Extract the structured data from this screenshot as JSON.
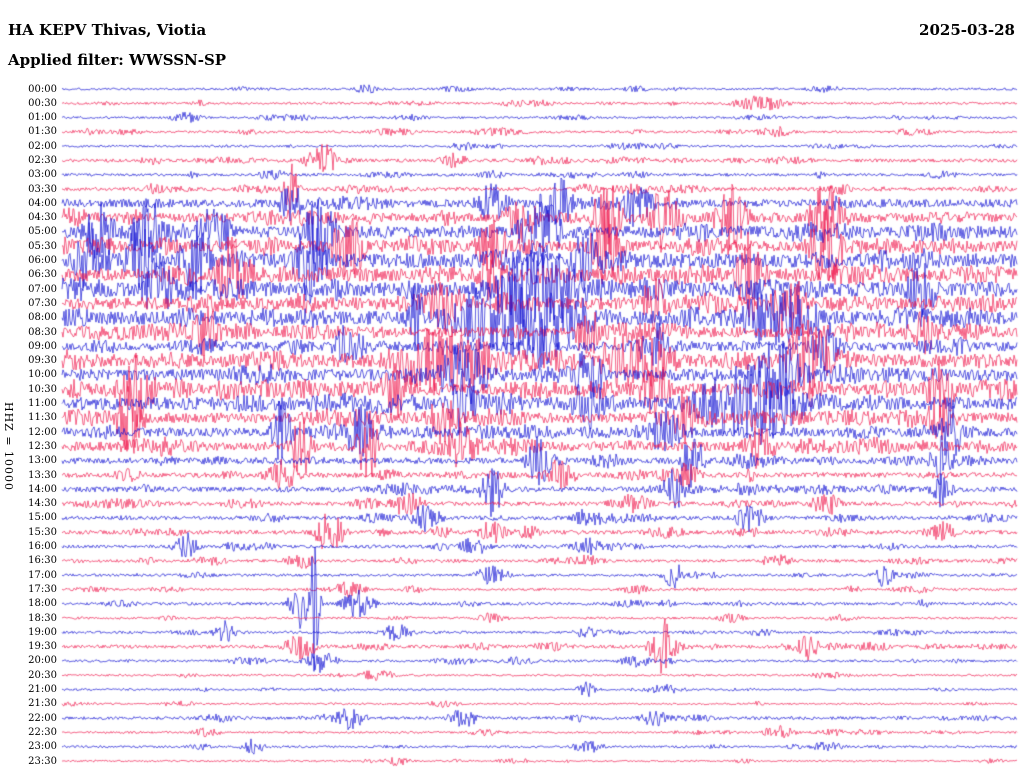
{
  "header": {
    "station_line": "HA KEPV Thivas, Viotia",
    "filter_line": "Applied filter: WWSSN-SP",
    "date": "2025-03-28"
  },
  "axis": {
    "scale_label": "HHZ = 10000",
    "start_time": "00:00",
    "end_time": "23:30",
    "time_step_minutes": 30
  },
  "chart_data": {
    "type": "seismogram",
    "title": "Helicorder HA KEPV Thivas, Viotia 2025-03-28 (WWSSN-SP filter)",
    "minutes_per_line": 30,
    "legend_position": "none",
    "grid": false,
    "colors": {
      "blue": "#0a0ad2",
      "red": "#f01248"
    },
    "rows": [
      {
        "time": "00:00",
        "color": "blue",
        "activity": 0.3,
        "events": [
          {
            "x": 0.32,
            "a": 0.1
          },
          {
            "x": 0.6,
            "a": 0.07
          }
        ]
      },
      {
        "time": "00:30",
        "color": "red",
        "activity": 0.32,
        "events": [
          {
            "x": 0.73,
            "a": 0.18,
            "w": 0.02
          },
          {
            "x": 0.5,
            "a": 0.08
          }
        ]
      },
      {
        "time": "01:00",
        "color": "blue",
        "activity": 0.3,
        "events": [
          {
            "x": 0.13,
            "a": 0.12
          },
          {
            "x": 0.25,
            "a": 0.07
          }
        ]
      },
      {
        "time": "01:30",
        "color": "red",
        "activity": 0.32,
        "events": [
          {
            "x": 0.75,
            "a": 0.12
          },
          {
            "x": 0.9,
            "a": 0.08
          }
        ]
      },
      {
        "time": "02:00",
        "color": "blue",
        "activity": 0.28,
        "events": [
          {
            "x": 0.42,
            "a": 0.1
          },
          {
            "x": 0.63,
            "a": 0.08
          }
        ]
      },
      {
        "time": "02:30",
        "color": "red",
        "activity": 0.42,
        "events": [
          {
            "x": 0.27,
            "a": 0.4,
            "w": 0.012
          },
          {
            "x": 0.41,
            "a": 0.16
          },
          {
            "x": 0.5,
            "a": 0.1
          }
        ]
      },
      {
        "time": "03:00",
        "color": "blue",
        "activity": 0.35,
        "events": [
          {
            "x": 0.22,
            "a": 0.12
          },
          {
            "x": 0.45,
            "a": 0.1
          },
          {
            "x": 0.6,
            "a": 0.1
          }
        ]
      },
      {
        "time": "03:30",
        "color": "red",
        "activity": 0.45,
        "events": [
          {
            "x": 0.24,
            "a": 0.55,
            "w": 0.006
          },
          {
            "x": 0.1,
            "a": 0.15
          },
          {
            "x": 0.55,
            "a": 0.12
          }
        ]
      },
      {
        "time": "04:00",
        "color": "blue",
        "activity": 0.7,
        "events": [
          {
            "x": 0.24,
            "a": 0.6,
            "w": 0.008
          },
          {
            "x": 0.45,
            "a": 0.45
          },
          {
            "x": 0.52,
            "a": 0.55
          },
          {
            "x": 0.6,
            "a": 0.55
          }
        ]
      },
      {
        "time": "04:30",
        "color": "red",
        "activity": 0.75,
        "events": [
          {
            "x": 0.48,
            "a": 0.55
          },
          {
            "x": 0.57,
            "a": 0.85,
            "w": 0.01
          },
          {
            "x": 0.63,
            "a": 0.8
          },
          {
            "x": 0.7,
            "a": 0.7
          },
          {
            "x": 0.8,
            "a": 0.85
          }
        ]
      },
      {
        "time": "05:00",
        "color": "blue",
        "activity": 0.85,
        "events": [
          {
            "x": 0.04,
            "a": 0.65
          },
          {
            "x": 0.09,
            "a": 0.75
          },
          {
            "x": 0.16,
            "a": 0.7
          },
          {
            "x": 0.27,
            "a": 0.8
          },
          {
            "x": 0.5,
            "a": 0.85,
            "w": 0.015
          }
        ]
      },
      {
        "time": "05:30",
        "color": "red",
        "activity": 0.85,
        "events": [
          {
            "x": 0.3,
            "a": 0.8
          },
          {
            "x": 0.45,
            "a": 0.6
          },
          {
            "x": 0.57,
            "a": 0.9,
            "w": 0.012
          },
          {
            "x": 0.8,
            "a": 0.95,
            "w": 0.012
          }
        ]
      },
      {
        "time": "06:00",
        "color": "blue",
        "activity": 0.95,
        "events": [
          {
            "x": 0.03,
            "a": 0.85
          },
          {
            "x": 0.08,
            "a": 0.9
          },
          {
            "x": 0.14,
            "a": 0.85
          },
          {
            "x": 0.26,
            "a": 0.95,
            "w": 0.012
          },
          {
            "x": 0.55,
            "a": 0.75
          }
        ]
      },
      {
        "time": "06:30",
        "color": "red",
        "activity": 0.9,
        "events": [
          {
            "x": 0.18,
            "a": 0.95,
            "w": 0.012
          },
          {
            "x": 0.45,
            "a": 0.6
          },
          {
            "x": 0.72,
            "a": 1.0,
            "w": 0.01
          }
        ]
      },
      {
        "time": "07:00",
        "color": "blue",
        "activity": 0.95,
        "events": [
          {
            "x": 0.1,
            "a": 0.7
          },
          {
            "x": 0.5,
            "a": 1.0,
            "w": 0.03
          },
          {
            "x": 0.9,
            "a": 0.6
          }
        ]
      },
      {
        "time": "07:30",
        "color": "red",
        "activity": 0.88,
        "events": [
          {
            "x": 0.4,
            "a": 0.7
          },
          {
            "x": 0.62,
            "a": 0.6
          },
          {
            "x": 0.76,
            "a": 0.85,
            "w": 0.012
          }
        ]
      },
      {
        "time": "08:00",
        "color": "blue",
        "activity": 0.92,
        "events": [
          {
            "x": 0.48,
            "a": 1.0,
            "w": 0.05
          },
          {
            "x": 0.37,
            "a": 0.8,
            "w": 0.006
          },
          {
            "x": 0.75,
            "a": 0.7,
            "w": 0.03
          }
        ]
      },
      {
        "time": "08:30",
        "color": "red",
        "activity": 0.8,
        "events": [
          {
            "x": 0.15,
            "a": 0.6
          },
          {
            "x": 0.55,
            "a": 0.55
          },
          {
            "x": 0.9,
            "a": 0.5
          }
        ]
      },
      {
        "time": "09:00",
        "color": "blue",
        "activity": 0.75,
        "events": [
          {
            "x": 0.3,
            "a": 0.5
          },
          {
            "x": 0.5,
            "a": 0.6
          },
          {
            "x": 0.62,
            "a": 0.55
          },
          {
            "x": 0.8,
            "a": 0.55
          }
        ]
      },
      {
        "time": "09:30",
        "color": "red",
        "activity": 0.9,
        "events": [
          {
            "x": 0.4,
            "a": 0.75,
            "w": 0.04
          },
          {
            "x": 0.6,
            "a": 0.7,
            "w": 0.03
          },
          {
            "x": 0.78,
            "a": 1.0,
            "w": 0.015
          }
        ]
      },
      {
        "time": "10:00",
        "color": "blue",
        "activity": 0.85,
        "events": [
          {
            "x": 0.42,
            "a": 0.7,
            "w": 0.02
          },
          {
            "x": 0.55,
            "a": 0.6
          },
          {
            "x": 0.75,
            "a": 0.8,
            "w": 0.02
          }
        ]
      },
      {
        "time": "10:30",
        "color": "red",
        "activity": 0.85,
        "events": [
          {
            "x": 0.08,
            "a": 0.8
          },
          {
            "x": 0.35,
            "a": 0.6
          },
          {
            "x": 0.62,
            "a": 0.6
          },
          {
            "x": 0.92,
            "a": 0.65
          }
        ]
      },
      {
        "time": "11:00",
        "color": "blue",
        "activity": 0.9,
        "events": [
          {
            "x": 0.42,
            "a": 0.7
          },
          {
            "x": 0.55,
            "a": 0.65
          },
          {
            "x": 0.72,
            "a": 0.9,
            "w": 0.04
          }
        ]
      },
      {
        "time": "11:30",
        "color": "red",
        "activity": 0.8,
        "events": [
          {
            "x": 0.07,
            "a": 0.85,
            "w": 0.01
          },
          {
            "x": 0.4,
            "a": 0.6
          },
          {
            "x": 0.65,
            "a": 0.55
          },
          {
            "x": 0.92,
            "a": 0.5
          }
        ]
      },
      {
        "time": "12:00",
        "color": "blue",
        "activity": 0.75,
        "events": [
          {
            "x": 0.23,
            "a": 0.7,
            "w": 0.008
          },
          {
            "x": 0.31,
            "a": 0.6
          },
          {
            "x": 0.63,
            "a": 0.55
          },
          {
            "x": 0.93,
            "a": 0.75,
            "w": 0.008
          }
        ]
      },
      {
        "time": "12:30",
        "color": "red",
        "activity": 0.75,
        "events": [
          {
            "x": 0.25,
            "a": 0.7,
            "w": 0.008
          },
          {
            "x": 0.32,
            "a": 0.75,
            "w": 0.008
          },
          {
            "x": 0.42,
            "a": 0.55
          },
          {
            "x": 0.73,
            "a": 0.5
          }
        ]
      },
      {
        "time": "13:00",
        "color": "blue",
        "activity": 0.62,
        "events": [
          {
            "x": 0.5,
            "a": 0.55,
            "w": 0.01
          },
          {
            "x": 0.66,
            "a": 0.6,
            "w": 0.008
          },
          {
            "x": 0.92,
            "a": 0.55,
            "w": 0.008
          }
        ]
      },
      {
        "time": "13:30",
        "color": "red",
        "activity": 0.55,
        "events": [
          {
            "x": 0.23,
            "a": 0.4
          },
          {
            "x": 0.52,
            "a": 0.35
          },
          {
            "x": 0.65,
            "a": 0.3
          }
        ]
      },
      {
        "time": "14:00",
        "color": "blue",
        "activity": 0.55,
        "events": [
          {
            "x": 0.45,
            "a": 0.6,
            "w": 0.008
          },
          {
            "x": 0.64,
            "a": 0.5,
            "w": 0.008
          },
          {
            "x": 0.92,
            "a": 0.4,
            "w": 0.008
          }
        ]
      },
      {
        "time": "14:30",
        "color": "red",
        "activity": 0.48,
        "events": [
          {
            "x": 0.36,
            "a": 0.3
          },
          {
            "x": 0.6,
            "a": 0.25
          },
          {
            "x": 0.8,
            "a": 0.25
          }
        ]
      },
      {
        "time": "15:00",
        "color": "blue",
        "activity": 0.45,
        "events": [
          {
            "x": 0.38,
            "a": 0.3
          },
          {
            "x": 0.55,
            "a": 0.25
          },
          {
            "x": 0.72,
            "a": 0.3
          }
        ]
      },
      {
        "time": "15:30",
        "color": "red",
        "activity": 0.48,
        "events": [
          {
            "x": 0.28,
            "a": 0.5,
            "w": 0.01
          },
          {
            "x": 0.45,
            "a": 0.25
          },
          {
            "x": 0.92,
            "a": 0.25
          }
        ]
      },
      {
        "time": "16:00",
        "color": "blue",
        "activity": 0.4,
        "events": [
          {
            "x": 0.13,
            "a": 0.3,
            "w": 0.008
          },
          {
            "x": 0.43,
            "a": 0.2
          },
          {
            "x": 0.55,
            "a": 0.2
          }
        ]
      },
      {
        "time": "16:30",
        "color": "red",
        "activity": 0.36,
        "events": [
          {
            "x": 0.25,
            "a": 0.18
          },
          {
            "x": 0.55,
            "a": 0.15
          },
          {
            "x": 0.75,
            "a": 0.15
          }
        ]
      },
      {
        "time": "17:00",
        "color": "blue",
        "activity": 0.34,
        "events": [
          {
            "x": 0.45,
            "a": 0.22
          },
          {
            "x": 0.64,
            "a": 0.28,
            "w": 0.008
          },
          {
            "x": 0.86,
            "a": 0.28,
            "w": 0.008
          }
        ]
      },
      {
        "time": "17:30",
        "color": "red",
        "activity": 0.32,
        "events": [
          {
            "x": 0.3,
            "a": 0.18
          },
          {
            "x": 0.6,
            "a": 0.12
          }
        ]
      },
      {
        "time": "18:00",
        "color": "blue",
        "activity": 0.38,
        "events": [
          {
            "x": 0.265,
            "a": 2.2,
            "w": 0.003
          },
          {
            "x": 0.25,
            "a": 0.55,
            "w": 0.01
          },
          {
            "x": 0.31,
            "a": 0.3
          }
        ]
      },
      {
        "time": "18:30",
        "color": "red",
        "activity": 0.3,
        "events": [
          {
            "x": 0.45,
            "a": 0.12
          },
          {
            "x": 0.7,
            "a": 0.1
          }
        ]
      },
      {
        "time": "19:00",
        "color": "blue",
        "activity": 0.34,
        "events": [
          {
            "x": 0.17,
            "a": 0.25,
            "w": 0.008
          },
          {
            "x": 0.35,
            "a": 0.18
          },
          {
            "x": 0.55,
            "a": 0.12
          }
        ]
      },
      {
        "time": "19:30",
        "color": "red",
        "activity": 0.42,
        "events": [
          {
            "x": 0.25,
            "a": 0.28
          },
          {
            "x": 0.63,
            "a": 0.6,
            "w": 0.01
          },
          {
            "x": 0.78,
            "a": 0.3,
            "w": 0.008
          }
        ]
      },
      {
        "time": "20:00",
        "color": "blue",
        "activity": 0.33,
        "events": [
          {
            "x": 0.27,
            "a": 0.25
          },
          {
            "x": 0.6,
            "a": 0.15
          }
        ]
      },
      {
        "time": "20:30",
        "color": "red",
        "activity": 0.28,
        "events": [
          {
            "x": 0.33,
            "a": 0.15
          },
          {
            "x": 0.8,
            "a": 0.1
          }
        ]
      },
      {
        "time": "21:00",
        "color": "blue",
        "activity": 0.25,
        "events": [
          {
            "x": 0.55,
            "a": 0.18,
            "w": 0.008
          },
          {
            "x": 0.63,
            "a": 0.12
          }
        ]
      },
      {
        "time": "21:30",
        "color": "red",
        "activity": 0.24,
        "events": [
          {
            "x": 0.4,
            "a": 0.1
          }
        ]
      },
      {
        "time": "22:00",
        "color": "blue",
        "activity": 0.4,
        "events": [
          {
            "x": 0.3,
            "a": 0.25
          },
          {
            "x": 0.42,
            "a": 0.2
          },
          {
            "x": 0.62,
            "a": 0.2
          }
        ]
      },
      {
        "time": "22:30",
        "color": "red",
        "activity": 0.28,
        "events": [
          {
            "x": 0.75,
            "a": 0.15
          },
          {
            "x": 0.15,
            "a": 0.1
          }
        ]
      },
      {
        "time": "23:00",
        "color": "blue",
        "activity": 0.3,
        "events": [
          {
            "x": 0.2,
            "a": 0.2,
            "w": 0.008
          },
          {
            "x": 0.55,
            "a": 0.15
          },
          {
            "x": 0.8,
            "a": 0.12
          }
        ]
      },
      {
        "time": "23:30",
        "color": "red",
        "activity": 0.24,
        "events": [
          {
            "x": 0.35,
            "a": 0.1
          }
        ]
      }
    ]
  }
}
